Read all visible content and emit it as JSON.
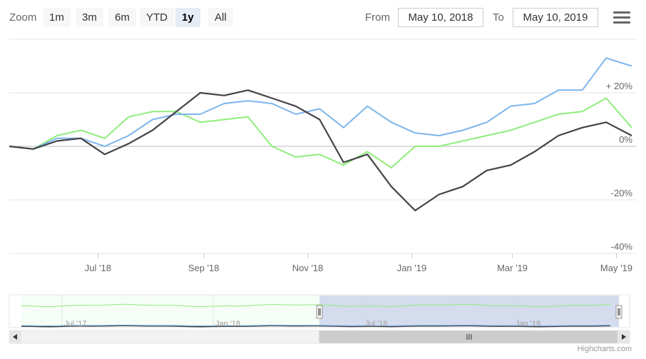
{
  "toolbar": {
    "zoom_label": "Zoom",
    "buttons": [
      "1m",
      "3m",
      "6m",
      "YTD",
      "1y",
      "All"
    ],
    "active_button": "1y",
    "from_label": "From",
    "from_value": "May 10, 2018",
    "to_label": "To",
    "to_value": "May 10, 2019"
  },
  "colors": {
    "series_blue": "#7cb5ec",
    "series_black": "#434348",
    "series_green": "#90ed7d",
    "navigator_mask": "#ccd6eb"
  },
  "icons": {
    "menu": "hamburger-menu-icon"
  },
  "credits": "Highcharts.com",
  "chart_data": {
    "type": "line",
    "x_tick_labels": [
      "Jul '18",
      "Sep '18",
      "Nov '18",
      "Jan '19",
      "Mar '19",
      "May '19"
    ],
    "y_tick_labels": [
      "+ 20%",
      "0%",
      "-20%",
      "-40%"
    ],
    "y_ticks": [
      20,
      0,
      -20,
      -40
    ],
    "ylim": [
      -40,
      36
    ],
    "x_range": [
      "2018-05-10",
      "2019-05-10"
    ],
    "grid": true,
    "legend": "none",
    "series": [
      {
        "color": "#7cb5ec",
        "x": [
          "2018-05-10",
          "2018-05-24",
          "2018-06-07",
          "2018-06-21",
          "2018-07-05",
          "2018-07-19",
          "2018-08-02",
          "2018-08-16",
          "2018-08-30",
          "2018-09-13",
          "2018-09-27",
          "2018-10-11",
          "2018-10-25",
          "2018-11-08",
          "2018-11-22",
          "2018-12-06",
          "2018-12-20",
          "2019-01-03",
          "2019-01-17",
          "2019-01-31",
          "2019-02-14",
          "2019-02-28",
          "2019-03-14",
          "2019-03-28",
          "2019-04-11",
          "2019-04-25",
          "2019-05-10"
        ],
        "values": [
          0,
          -1,
          3,
          3,
          0,
          4,
          10,
          12,
          12,
          16,
          17,
          16,
          12,
          14,
          7,
          15,
          9,
          5,
          4,
          6,
          9,
          15,
          16,
          21,
          21,
          33,
          30
        ]
      },
      {
        "color": "#434348",
        "x": [
          "2018-05-10",
          "2018-05-24",
          "2018-06-07",
          "2018-06-21",
          "2018-07-05",
          "2018-07-19",
          "2018-08-02",
          "2018-08-16",
          "2018-08-30",
          "2018-09-13",
          "2018-09-27",
          "2018-10-11",
          "2018-10-25",
          "2018-11-08",
          "2018-11-22",
          "2018-12-06",
          "2018-12-20",
          "2019-01-03",
          "2019-01-17",
          "2019-01-31",
          "2019-02-14",
          "2019-02-28",
          "2019-03-14",
          "2019-03-28",
          "2019-04-11",
          "2019-04-25",
          "2019-05-10"
        ],
        "values": [
          0,
          -1,
          2,
          3,
          -3,
          1,
          6,
          13,
          20,
          19,
          21,
          18,
          15,
          10,
          -6,
          -3,
          -15,
          -24,
          -18,
          -15,
          -9,
          -7,
          -2,
          4,
          7,
          9,
          4
        ]
      },
      {
        "color": "#90ed7d",
        "x": [
          "2018-05-10",
          "2018-05-24",
          "2018-06-07",
          "2018-06-21",
          "2018-07-05",
          "2018-07-19",
          "2018-08-02",
          "2018-08-16",
          "2018-08-30",
          "2018-09-13",
          "2018-09-27",
          "2018-10-11",
          "2018-10-25",
          "2018-11-08",
          "2018-11-22",
          "2018-12-06",
          "2018-12-20",
          "2019-01-03",
          "2019-01-17",
          "2019-01-31",
          "2019-02-14",
          "2019-02-28",
          "2019-03-14",
          "2019-03-28",
          "2019-04-11",
          "2019-04-25",
          "2019-05-10"
        ],
        "values": [
          0,
          -1,
          4,
          6,
          3,
          11,
          13,
          13,
          9,
          10,
          11,
          0,
          -4,
          -3,
          -7,
          -2,
          -8,
          0,
          0,
          2,
          4,
          6,
          9,
          12,
          13,
          18,
          7
        ]
      }
    ],
    "navigator": {
      "x_tick_labels": [
        "Jul '17",
        "Jan '18",
        "Jul '18",
        "Jan '19"
      ],
      "selected_range": [
        "2018-05-10",
        "2019-05-10"
      ]
    }
  }
}
